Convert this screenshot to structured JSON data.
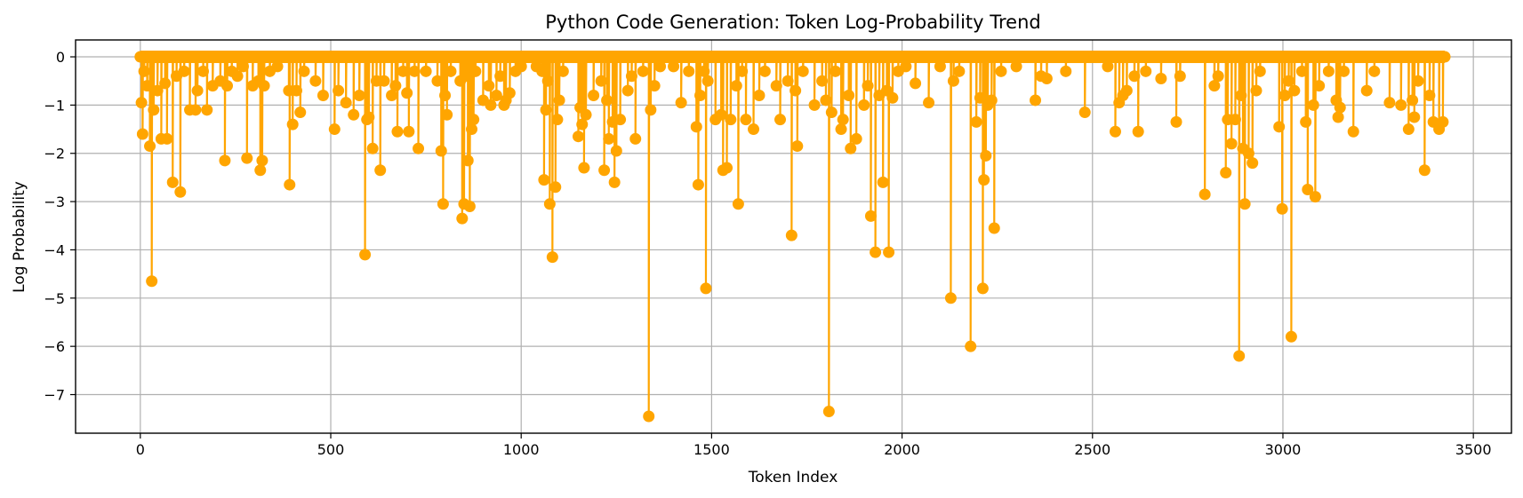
{
  "chart_data": {
    "type": "line",
    "title": "Python Code Generation: Token Log-Probability Trend",
    "xlabel": "Token Index",
    "ylabel": "Log Probability",
    "xlim": [
      -170,
      3600
    ],
    "ylim": [
      -7.8,
      0.35
    ],
    "x_ticks": [
      0,
      500,
      1000,
      1500,
      2000,
      2500,
      3000,
      3500
    ],
    "y_ticks": [
      0,
      -1,
      -2,
      -3,
      -4,
      -5,
      -6,
      -7
    ],
    "x_tick_labels": [
      "0",
      "500",
      "1000",
      "1500",
      "2000",
      "2500",
      "3000",
      "3500"
    ],
    "y_tick_labels": [
      "0",
      "−1",
      "−2",
      "−3",
      "−4",
      "−5",
      "−6",
      "−7"
    ],
    "grid": true,
    "color": "#ffa500",
    "marker": "circle",
    "x_start": 0,
    "x_end": 3425,
    "dips": [
      [
        3,
        -0.95
      ],
      [
        6,
        -1.6
      ],
      [
        10,
        -0.3
      ],
      [
        18,
        -0.6
      ],
      [
        25,
        -1.85
      ],
      [
        30,
        -4.65
      ],
      [
        35,
        -1.1
      ],
      [
        45,
        -0.7
      ],
      [
        55,
        -1.7
      ],
      [
        65,
        -0.55
      ],
      [
        70,
        -1.7
      ],
      [
        85,
        -2.6
      ],
      [
        95,
        -0.4
      ],
      [
        105,
        -2.8
      ],
      [
        115,
        -0.3
      ],
      [
        130,
        -1.1
      ],
      [
        145,
        -1.1
      ],
      [
        150,
        -0.7
      ],
      [
        165,
        -0.3
      ],
      [
        175,
        -1.1
      ],
      [
        190,
        -0.6
      ],
      [
        210,
        -0.5
      ],
      [
        222,
        -2.15
      ],
      [
        228,
        -0.6
      ],
      [
        240,
        -0.3
      ],
      [
        255,
        -0.4
      ],
      [
        270,
        -0.2
      ],
      [
        280,
        -2.1
      ],
      [
        295,
        -0.6
      ],
      [
        310,
        -0.5
      ],
      [
        315,
        -2.35
      ],
      [
        320,
        -2.15
      ],
      [
        325,
        -0.6
      ],
      [
        340,
        -0.3
      ],
      [
        360,
        -0.2
      ],
      [
        390,
        -0.7
      ],
      [
        392,
        -2.65
      ],
      [
        400,
        -1.4
      ],
      [
        410,
        -0.7
      ],
      [
        420,
        -1.15
      ],
      [
        430,
        -0.3
      ],
      [
        460,
        -0.5
      ],
      [
        480,
        -0.8
      ],
      [
        510,
        -1.5
      ],
      [
        520,
        -0.7
      ],
      [
        540,
        -0.95
      ],
      [
        560,
        -1.2
      ],
      [
        575,
        -0.8
      ],
      [
        590,
        -4.1
      ],
      [
        595,
        -1.3
      ],
      [
        600,
        -1.25
      ],
      [
        610,
        -1.9
      ],
      [
        620,
        -0.5
      ],
      [
        630,
        -2.35
      ],
      [
        640,
        -0.5
      ],
      [
        660,
        -0.8
      ],
      [
        670,
        -0.6
      ],
      [
        675,
        -1.55
      ],
      [
        690,
        -0.3
      ],
      [
        700,
        -0.75
      ],
      [
        705,
        -1.55
      ],
      [
        720,
        -0.3
      ],
      [
        730,
        -1.9
      ],
      [
        750,
        -0.3
      ],
      [
        780,
        -0.5
      ],
      [
        790,
        -1.95
      ],
      [
        795,
        -3.05
      ],
      [
        800,
        -0.8
      ],
      [
        805,
        -1.2
      ],
      [
        815,
        -0.3
      ],
      [
        840,
        -0.5
      ],
      [
        845,
        -3.35
      ],
      [
        850,
        -3.05
      ],
      [
        855,
        -0.4
      ],
      [
        860,
        -2.15
      ],
      [
        865,
        -3.1
      ],
      [
        870,
        -1.5
      ],
      [
        875,
        -1.3
      ],
      [
        880,
        -0.3
      ],
      [
        900,
        -0.9
      ],
      [
        915,
        -0.6
      ],
      [
        920,
        -1.0
      ],
      [
        935,
        -0.8
      ],
      [
        945,
        -0.4
      ],
      [
        955,
        -1.0
      ],
      [
        960,
        -0.9
      ],
      [
        970,
        -0.75
      ],
      [
        985,
        -0.3
      ],
      [
        1000,
        -0.2
      ],
      [
        1040,
        -0.2
      ],
      [
        1055,
        -0.3
      ],
      [
        1060,
        -2.55
      ],
      [
        1065,
        -1.1
      ],
      [
        1070,
        -0.5
      ],
      [
        1075,
        -3.05
      ],
      [
        1082,
        -4.15
      ],
      [
        1090,
        -2.7
      ],
      [
        1095,
        -1.3
      ],
      [
        1100,
        -0.9
      ],
      [
        1110,
        -0.3
      ],
      [
        1150,
        -1.65
      ],
      [
        1155,
        -1.05
      ],
      [
        1160,
        -1.4
      ],
      [
        1165,
        -2.3
      ],
      [
        1170,
        -1.2
      ],
      [
        1190,
        -0.8
      ],
      [
        1210,
        -0.5
      ],
      [
        1218,
        -2.35
      ],
      [
        1225,
        -0.9
      ],
      [
        1230,
        -1.7
      ],
      [
        1240,
        -1.35
      ],
      [
        1245,
        -2.6
      ],
      [
        1250,
        -1.95
      ],
      [
        1260,
        -1.3
      ],
      [
        1280,
        -0.7
      ],
      [
        1290,
        -0.4
      ],
      [
        1300,
        -1.7
      ],
      [
        1320,
        -0.3
      ],
      [
        1335,
        -7.45
      ],
      [
        1340,
        -1.1
      ],
      [
        1350,
        -0.6
      ],
      [
        1365,
        -0.2
      ],
      [
        1400,
        -0.2
      ],
      [
        1420,
        -0.95
      ],
      [
        1440,
        -0.3
      ],
      [
        1460,
        -1.45
      ],
      [
        1465,
        -2.65
      ],
      [
        1470,
        -0.8
      ],
      [
        1480,
        -0.3
      ],
      [
        1485,
        -4.8
      ],
      [
        1490,
        -0.5
      ],
      [
        1510,
        -1.3
      ],
      [
        1525,
        -1.2
      ],
      [
        1530,
        -2.35
      ],
      [
        1540,
        -2.3
      ],
      [
        1550,
        -1.3
      ],
      [
        1565,
        -0.6
      ],
      [
        1570,
        -3.05
      ],
      [
        1580,
        -0.3
      ],
      [
        1590,
        -1.3
      ],
      [
        1610,
        -1.5
      ],
      [
        1625,
        -0.8
      ],
      [
        1640,
        -0.3
      ],
      [
        1670,
        -0.6
      ],
      [
        1680,
        -1.3
      ],
      [
        1700,
        -0.5
      ],
      [
        1710,
        -3.7
      ],
      [
        1720,
        -0.7
      ],
      [
        1725,
        -1.85
      ],
      [
        1740,
        -0.3
      ],
      [
        1770,
        -1.0
      ],
      [
        1790,
        -0.5
      ],
      [
        1800,
        -0.9
      ],
      [
        1808,
        -7.35
      ],
      [
        1815,
        -1.15
      ],
      [
        1825,
        -0.3
      ],
      [
        1840,
        -1.5
      ],
      [
        1845,
        -1.3
      ],
      [
        1860,
        -0.8
      ],
      [
        1865,
        -1.9
      ],
      [
        1880,
        -1.7
      ],
      [
        1900,
        -1.0
      ],
      [
        1910,
        -0.6
      ],
      [
        1918,
        -3.3
      ],
      [
        1930,
        -4.05
      ],
      [
        1940,
        -0.8
      ],
      [
        1950,
        -2.6
      ],
      [
        1960,
        -0.7
      ],
      [
        1965,
        -4.05
      ],
      [
        1975,
        -0.85
      ],
      [
        1990,
        -0.3
      ],
      [
        2010,
        -0.2
      ],
      [
        2035,
        -0.55
      ],
      [
        2070,
        -0.95
      ],
      [
        2100,
        -0.2
      ],
      [
        2128,
        -5.0
      ],
      [
        2135,
        -0.5
      ],
      [
        2150,
        -0.3
      ],
      [
        2180,
        -6.0
      ],
      [
        2195,
        -1.35
      ],
      [
        2205,
        -0.85
      ],
      [
        2212,
        -4.8
      ],
      [
        2215,
        -2.55
      ],
      [
        2220,
        -2.05
      ],
      [
        2225,
        -1.0
      ],
      [
        2235,
        -0.9
      ],
      [
        2242,
        -3.55
      ],
      [
        2260,
        -0.3
      ],
      [
        2300,
        -0.2
      ],
      [
        2350,
        -0.9
      ],
      [
        2365,
        -0.4
      ],
      [
        2380,
        -0.45
      ],
      [
        2430,
        -0.3
      ],
      [
        2480,
        -1.15
      ],
      [
        2540,
        -0.2
      ],
      [
        2560,
        -1.55
      ],
      [
        2570,
        -0.95
      ],
      [
        2580,
        -0.8
      ],
      [
        2590,
        -0.7
      ],
      [
        2610,
        -0.4
      ],
      [
        2620,
        -1.55
      ],
      [
        2640,
        -0.3
      ],
      [
        2680,
        -0.45
      ],
      [
        2720,
        -1.35
      ],
      [
        2730,
        -0.4
      ],
      [
        2795,
        -2.85
      ],
      [
        2820,
        -0.6
      ],
      [
        2830,
        -0.4
      ],
      [
        2850,
        -2.4
      ],
      [
        2855,
        -1.3
      ],
      [
        2865,
        -1.8
      ],
      [
        2875,
        -1.3
      ],
      [
        2885,
        -6.2
      ],
      [
        2890,
        -0.8
      ],
      [
        2895,
        -1.9
      ],
      [
        2900,
        -3.05
      ],
      [
        2910,
        -2.0
      ],
      [
        2920,
        -2.2
      ],
      [
        2930,
        -0.7
      ],
      [
        2940,
        -0.3
      ],
      [
        2990,
        -1.45
      ],
      [
        2998,
        -3.15
      ],
      [
        3005,
        -0.8
      ],
      [
        3015,
        -0.5
      ],
      [
        3022,
        -5.8
      ],
      [
        3030,
        -0.7
      ],
      [
        3050,
        -0.3
      ],
      [
        3060,
        -1.35
      ],
      [
        3065,
        -2.75
      ],
      [
        3080,
        -1.0
      ],
      [
        3085,
        -2.9
      ],
      [
        3095,
        -0.6
      ],
      [
        3120,
        -0.3
      ],
      [
        3140,
        -0.9
      ],
      [
        3145,
        -1.25
      ],
      [
        3150,
        -1.05
      ],
      [
        3160,
        -0.3
      ],
      [
        3185,
        -1.55
      ],
      [
        3220,
        -0.7
      ],
      [
        3240,
        -0.3
      ],
      [
        3280,
        -0.95
      ],
      [
        3310,
        -1.0
      ],
      [
        3330,
        -1.5
      ],
      [
        3340,
        -0.9
      ],
      [
        3345,
        -1.25
      ],
      [
        3355,
        -0.5
      ],
      [
        3372,
        -2.35
      ],
      [
        3385,
        -0.8
      ],
      [
        3395,
        -1.35
      ],
      [
        3410,
        -1.5
      ],
      [
        3420,
        -1.35
      ]
    ]
  }
}
